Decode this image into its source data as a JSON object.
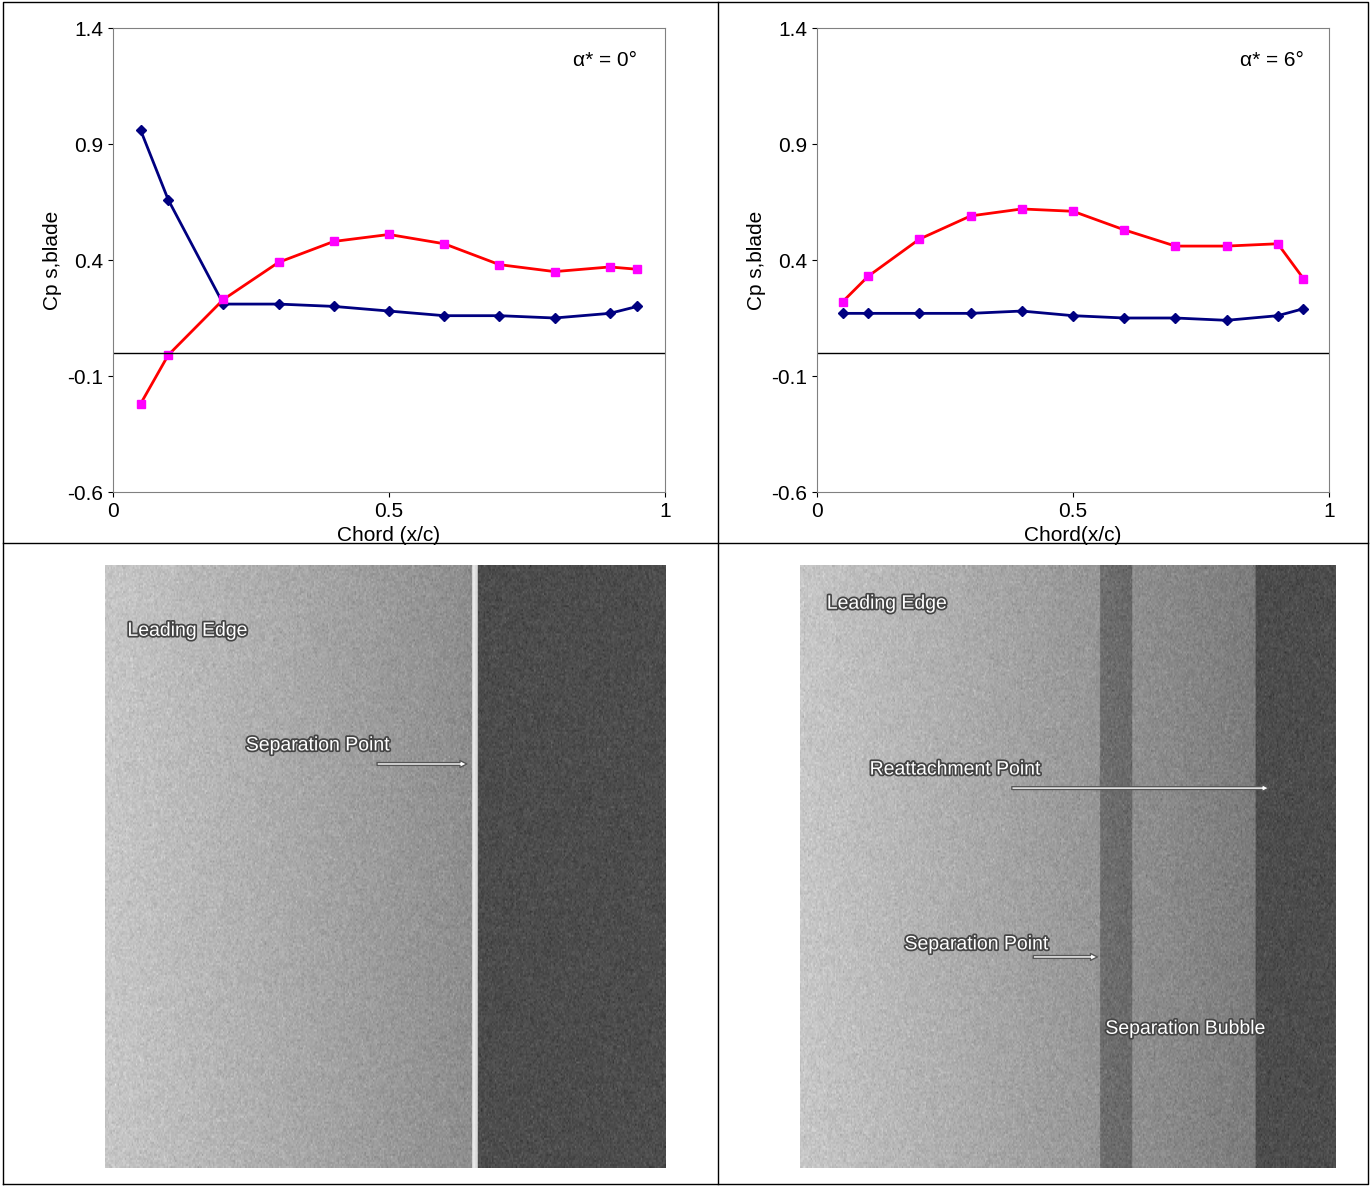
{
  "chart_data": [
    {
      "type": "line",
      "annotation": "α* = 0°",
      "xlabel": "Chord (x/c)",
      "ylabel": "Cp s,blade",
      "x": [
        0.05,
        0.1,
        0.2,
        0.3,
        0.4,
        0.5,
        0.6,
        0.7,
        0.8,
        0.9,
        0.95
      ],
      "series": [
        {
          "color": "#000080",
          "marker": "diamond",
          "line_style": "solid",
          "values": [
            0.96,
            0.66,
            0.21,
            0.21,
            0.2,
            0.18,
            0.16,
            0.16,
            0.15,
            0.17,
            0.2
          ]
        },
        {
          "color": "#ff0000",
          "marker": "square",
          "line_style": "solid",
          "values": [
            -0.22,
            -0.01,
            0.23,
            0.39,
            0.48,
            0.51,
            0.47,
            0.38,
            0.35,
            0.37,
            0.36
          ]
        }
      ],
      "xlim": [
        0,
        1
      ],
      "xticks": [
        0,
        0.5,
        1
      ],
      "ylim": [
        -0.6,
        1.4
      ],
      "yticks": [
        -0.6,
        -0.1,
        0.4,
        0.9,
        1.4
      ],
      "grid": false
    },
    {
      "type": "line",
      "annotation": "α* = 6°",
      "xlabel": "Chord(x/c)",
      "ylabel": "Cp s,blade",
      "x": [
        0.05,
        0.1,
        0.2,
        0.3,
        0.4,
        0.5,
        0.6,
        0.7,
        0.8,
        0.9,
        0.95
      ],
      "series": [
        {
          "color": "#000080",
          "marker": "diamond",
          "line_style": "solid",
          "values": [
            0.17,
            0.17,
            0.17,
            0.17,
            0.18,
            0.16,
            0.15,
            0.15,
            0.14,
            0.16,
            0.19
          ]
        },
        {
          "color": "#ff0000",
          "marker": "square",
          "line_style": "solid",
          "values": [
            0.22,
            0.33,
            0.49,
            0.59,
            0.62,
            0.61,
            0.53,
            0.46,
            0.46,
            0.47,
            0.32
          ]
        }
      ],
      "xlim": [
        0,
        1
      ],
      "xticks": [
        0,
        0.5,
        1
      ],
      "ylim": [
        -0.6,
        1.4
      ],
      "yticks": [
        -0.6,
        -0.1,
        0.4,
        0.9,
        1.4
      ],
      "grid": false
    }
  ],
  "photos": [
    {
      "annotations": [
        "Leading Edge",
        "Separation Point"
      ]
    },
    {
      "annotations": [
        "Leading Edge",
        "Reattachment Point",
        "Separation Point",
        "Separation Bubble"
      ]
    }
  ]
}
